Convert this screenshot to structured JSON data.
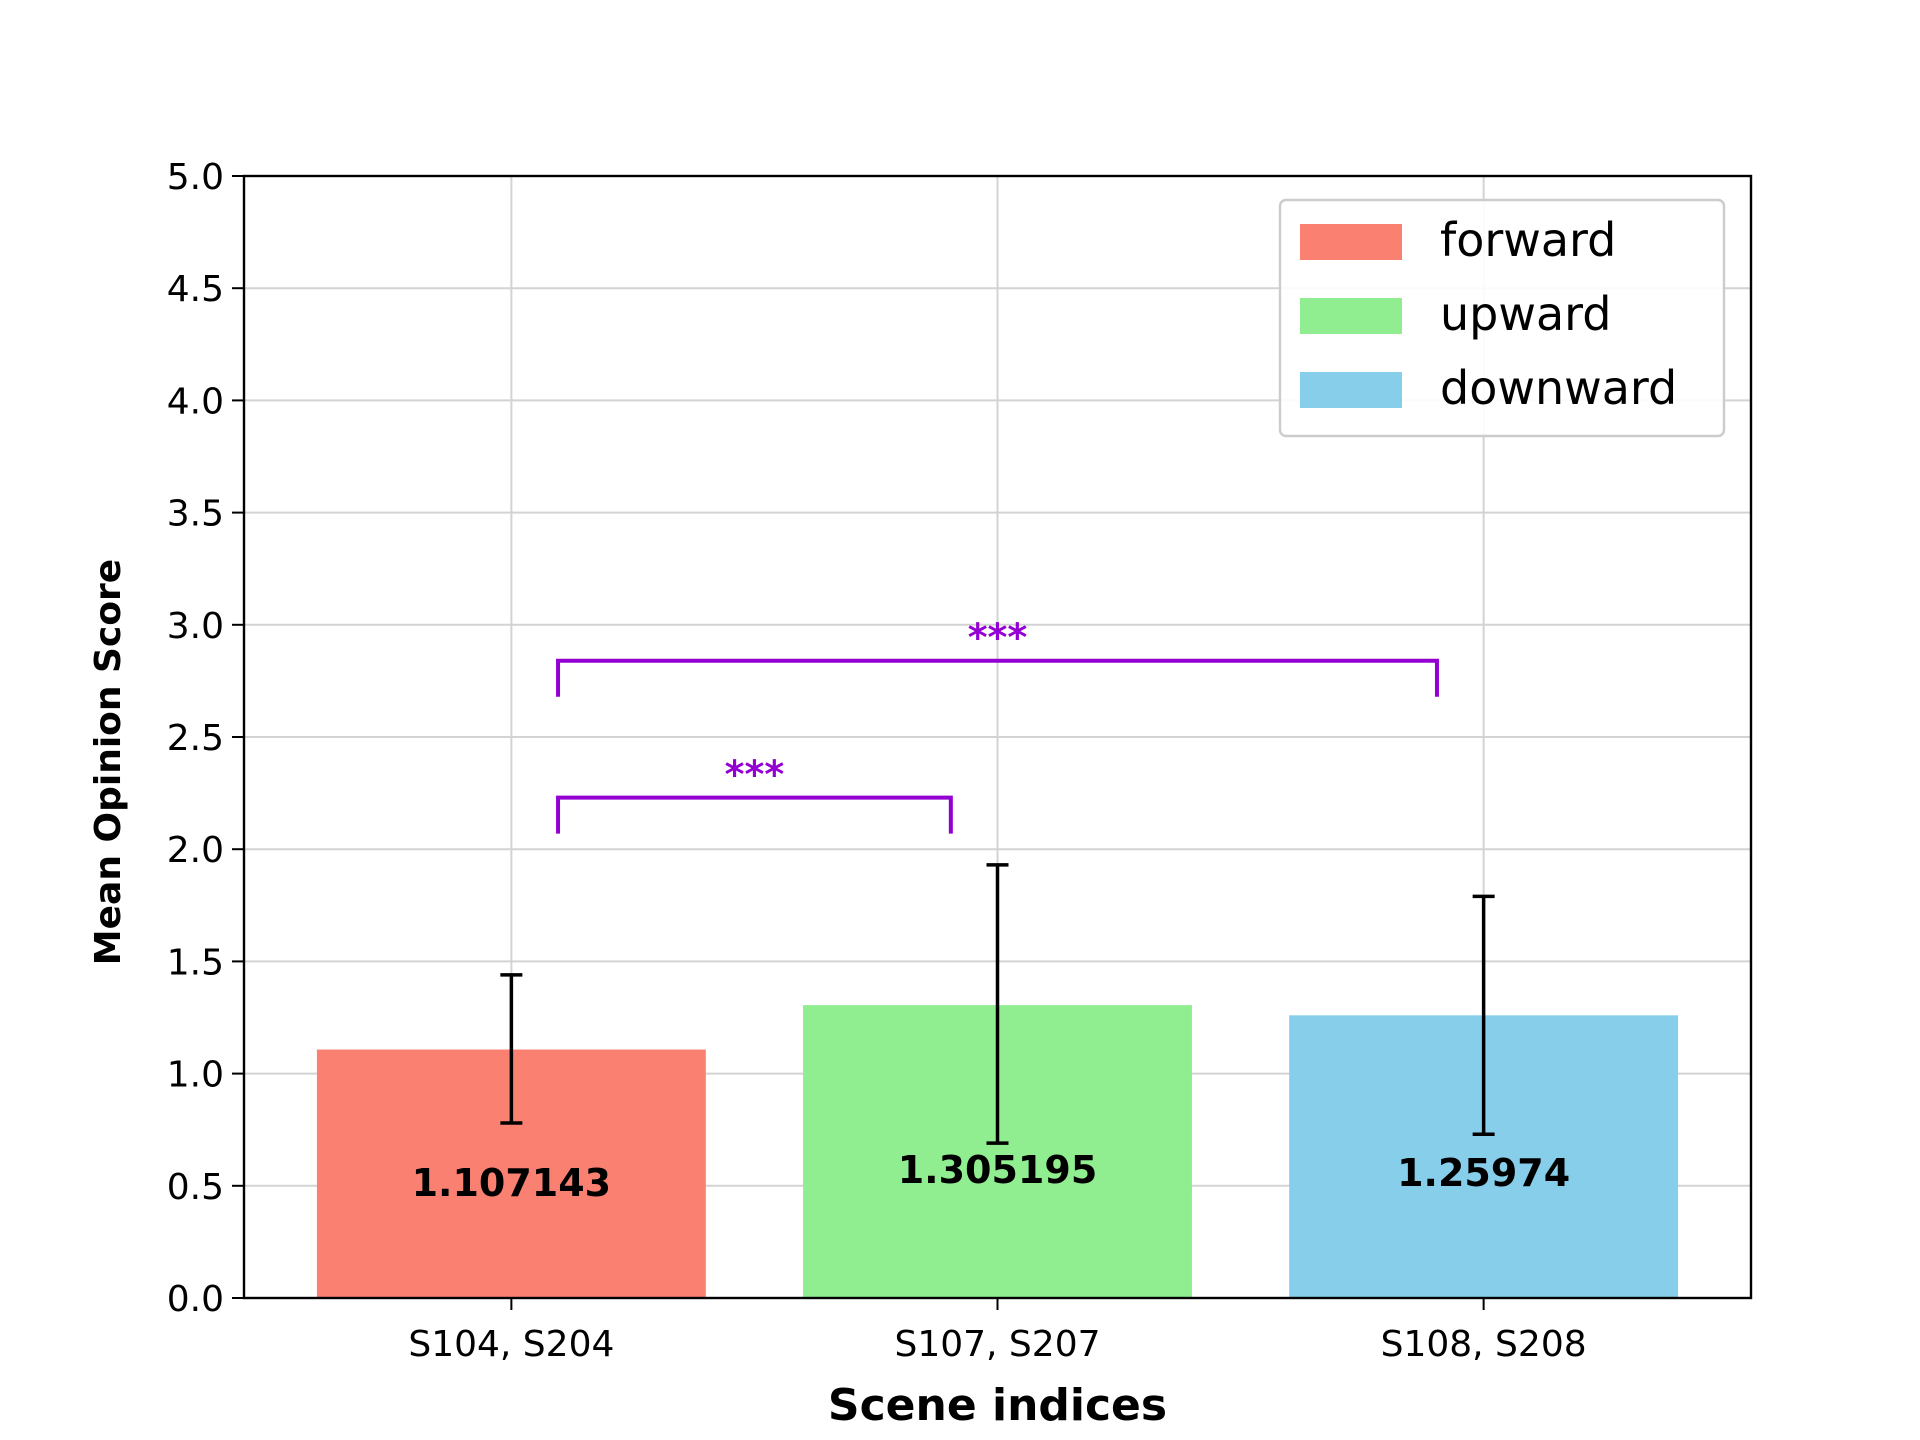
{
  "chart_data": {
    "type": "bar",
    "title": "",
    "xlabel": "Scene indices",
    "ylabel": "Mean Opinion Score",
    "ylim": [
      0,
      5
    ],
    "yticks": [
      "0.0",
      "0.5",
      "1.0",
      "1.5",
      "2.0",
      "2.5",
      "3.0",
      "3.5",
      "4.0",
      "4.5",
      "5.0"
    ],
    "grid": true,
    "legend_position": "top-right",
    "categories": [
      "S104, S204",
      "S107, S207",
      "S108, S208"
    ],
    "series": [
      {
        "name": "forward",
        "value": 1.107143,
        "label": "1.107143",
        "error_low": 0.78,
        "error_high": 1.44,
        "color": "#fa8072"
      },
      {
        "name": "upward",
        "value": 1.305195,
        "label": "1.305195",
        "error_low": 0.69,
        "error_high": 1.93,
        "color": "#90ee90"
      },
      {
        "name": "downward",
        "value": 1.25974,
        "label": "1.25974",
        "error_low": 0.73,
        "error_high": 1.79,
        "color": "#87ceeb"
      }
    ],
    "significance": [
      {
        "from": 0,
        "to": 1,
        "y": 2.23,
        "label": "***"
      },
      {
        "from": 0,
        "to": 2,
        "y": 2.84,
        "label": "***"
      }
    ],
    "significance_color": "#9400d3"
  }
}
